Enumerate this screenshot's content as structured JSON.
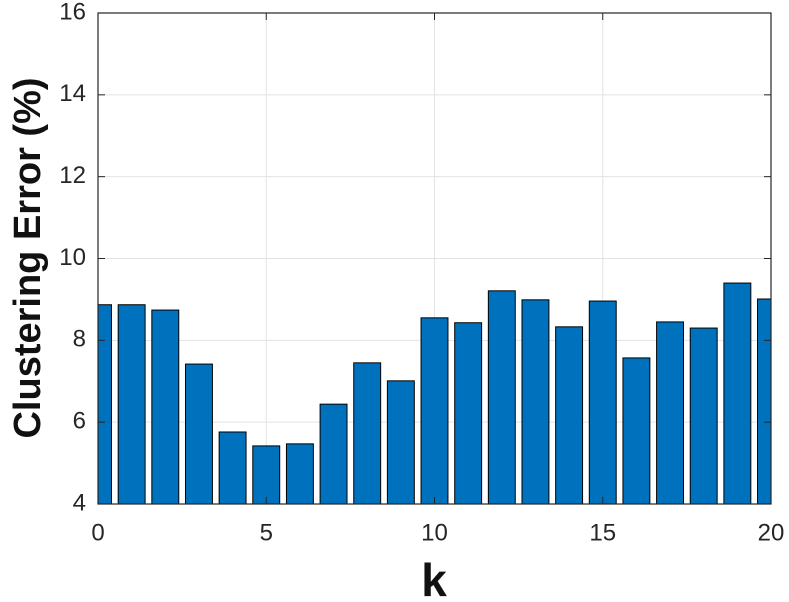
{
  "chart_data": {
    "type": "bar",
    "xlabel": "k",
    "ylabel": "Clustering Error (%)",
    "x": [
      0,
      1,
      2,
      3,
      4,
      5,
      6,
      7,
      8,
      9,
      10,
      11,
      12,
      13,
      14,
      15,
      16,
      17,
      18,
      19,
      20
    ],
    "values": [
      8.87,
      8.87,
      8.74,
      7.42,
      5.76,
      5.42,
      5.47,
      6.44,
      7.45,
      7.01,
      8.55,
      8.43,
      9.21,
      8.99,
      8.33,
      8.96,
      7.57,
      8.45,
      8.3,
      9.4,
      9.01
    ],
    "color": "#0072bd",
    "xlim": [
      0,
      20
    ],
    "xticks": [
      0,
      5,
      10,
      15,
      20
    ],
    "ylim": [
      4,
      16
    ],
    "yticks": [
      4,
      6,
      8,
      10,
      12,
      14,
      16
    ],
    "grid": true
  }
}
